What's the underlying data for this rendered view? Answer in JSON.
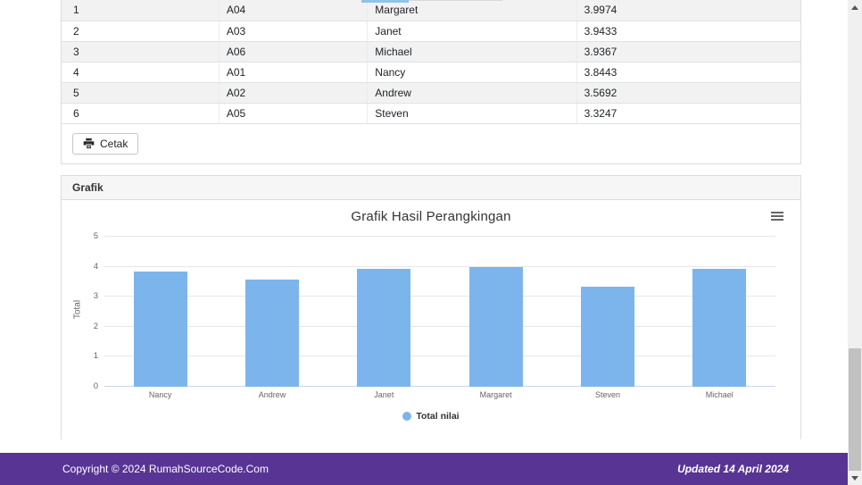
{
  "table": {
    "rows": [
      {
        "rank": "1",
        "code": "A04",
        "name": "Margaret",
        "total": "3.9974"
      },
      {
        "rank": "2",
        "code": "A03",
        "name": "Janet",
        "total": "3.9433"
      },
      {
        "rank": "3",
        "code": "A06",
        "name": "Michael",
        "total": "3.9367"
      },
      {
        "rank": "4",
        "code": "A01",
        "name": "Nancy",
        "total": "3.8443"
      },
      {
        "rank": "5",
        "code": "A02",
        "name": "Andrew",
        "total": "3.5692"
      },
      {
        "rank": "6",
        "code": "A05",
        "name": "Steven",
        "total": "3.3247"
      }
    ]
  },
  "actions": {
    "print_label": "Cetak"
  },
  "panel": {
    "title": "Grafik"
  },
  "chart_data": {
    "type": "bar",
    "title": "Grafik Hasil Perangkingan",
    "categories": [
      "Nancy",
      "Andrew",
      "Janet",
      "Margaret",
      "Steven",
      "Michael"
    ],
    "series": [
      {
        "name": "Total nilai",
        "values": [
          3.8443,
          3.5692,
          3.9433,
          3.9974,
          3.3247,
          3.9367
        ]
      }
    ],
    "xlabel": "",
    "ylabel": "Total",
    "ylim": [
      0,
      5
    ],
    "yticks": [
      0,
      1,
      2,
      3,
      4,
      5
    ],
    "bar_color": "#7cb5ec",
    "grid": true,
    "legend_position": "bottom"
  },
  "footer": {
    "copyright": "Copyright © 2024 RumahSourceCode.Com",
    "updated": "Updated 14 April 2024",
    "bg_color": "#583494"
  }
}
